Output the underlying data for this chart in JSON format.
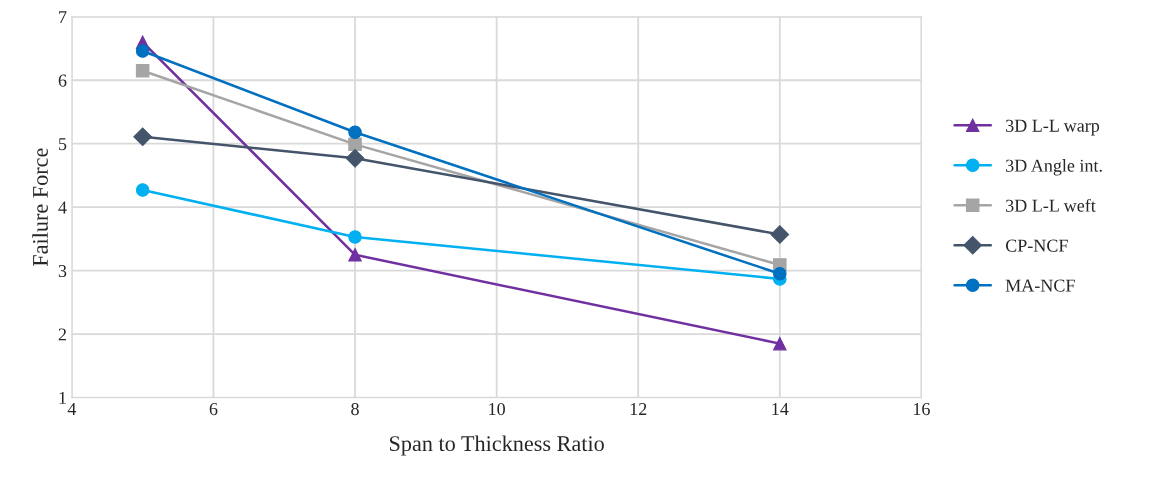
{
  "chart_data": {
    "type": "line",
    "xlabel": "Span to Thickness Ratio",
    "ylabel": "Failure Force",
    "x": [
      5,
      8,
      14
    ],
    "xlim": [
      4,
      16
    ],
    "xticks": [
      4,
      6,
      8,
      10,
      12,
      14,
      16
    ],
    "ylim": [
      1,
      7
    ],
    "yticks": [
      1,
      2,
      3,
      4,
      5,
      6,
      7
    ],
    "grid": true,
    "legend": "right",
    "series": [
      {
        "name": "3D L-L warp",
        "color": "#7030a0",
        "marker": "triangle",
        "values": [
          6.6,
          3.25,
          1.85
        ]
      },
      {
        "name": "3D Angle int.",
        "color": "#00b0f0",
        "marker": "circle",
        "values": [
          4.27,
          3.53,
          2.87
        ]
      },
      {
        "name": "3D L-L weft",
        "color": "#a5a5a5",
        "marker": "square",
        "values": [
          6.15,
          4.99,
          3.09
        ]
      },
      {
        "name": "CP-NCF",
        "color": "#44546a",
        "marker": "diamond",
        "values": [
          5.11,
          4.77,
          3.57
        ]
      },
      {
        "name": "MA-NCF",
        "color": "#0070c0",
        "marker": "circle",
        "values": [
          6.46,
          5.18,
          2.95
        ]
      }
    ]
  }
}
